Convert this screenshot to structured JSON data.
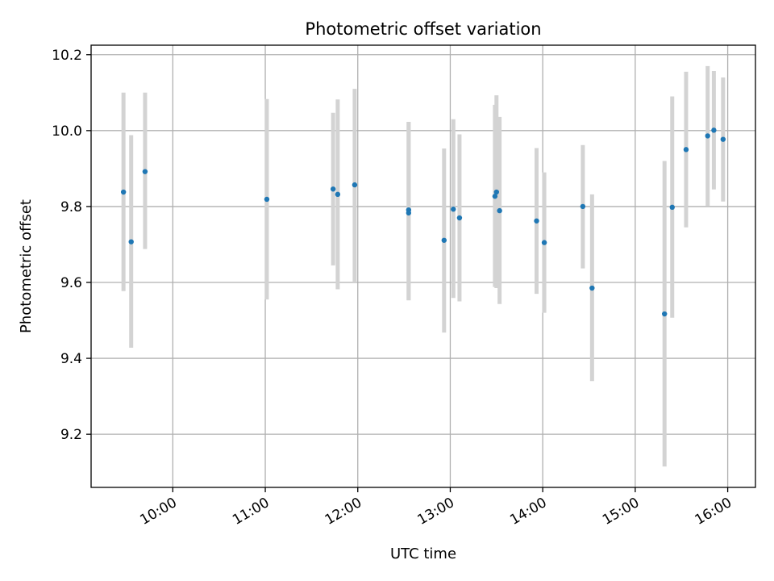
{
  "chart_data": {
    "type": "scatter",
    "title": "Photometric offset variation",
    "xlabel": "UTC time",
    "ylabel": "Photometric offset",
    "xlim": [
      "09:07",
      "16:18"
    ],
    "ylim": [
      9.06,
      10.225
    ],
    "xticks": [
      "10:00",
      "11:00",
      "12:00",
      "13:00",
      "14:00",
      "15:00",
      "16:00"
    ],
    "yticks": [
      9.2,
      9.4,
      9.6,
      9.8,
      10.0,
      10.2
    ],
    "ytick_labels": [
      "9.2",
      "9.4",
      "9.6",
      "9.8",
      "10.0",
      "10.2"
    ],
    "grid": true,
    "colors": {
      "marker": "#1f77b4",
      "errorbar": "#d3d3d3",
      "grid": "#b0b0b0"
    },
    "points": [
      {
        "x": "09:28",
        "y": 9.838,
        "ylo": 9.577,
        "yhi": 10.1
      },
      {
        "x": "09:33",
        "y": 9.707,
        "ylo": 9.428,
        "yhi": 9.988
      },
      {
        "x": "09:42",
        "y": 9.892,
        "ylo": 9.688,
        "yhi": 10.1
      },
      {
        "x": "11:01",
        "y": 9.819,
        "ylo": 9.555,
        "yhi": 10.083
      },
      {
        "x": "11:44",
        "y": 9.846,
        "ylo": 9.645,
        "yhi": 10.047
      },
      {
        "x": "11:47",
        "y": 9.832,
        "ylo": 9.582,
        "yhi": 10.082
      },
      {
        "x": "11:58",
        "y": 9.857,
        "ylo": 9.6,
        "yhi": 10.11
      },
      {
        "x": "12:33",
        "y": 9.791,
        "ylo": 9.553,
        "yhi": 10.023
      },
      {
        "x": "12:33",
        "y": 9.783,
        "ylo": 9.553,
        "yhi": 10.023
      },
      {
        "x": "12:56",
        "y": 9.711,
        "ylo": 9.468,
        "yhi": 9.953
      },
      {
        "x": "13:02",
        "y": 9.793,
        "ylo": 9.559,
        "yhi": 10.03
      },
      {
        "x": "13:06",
        "y": 9.77,
        "ylo": 9.55,
        "yhi": 9.99
      },
      {
        "x": "13:29",
        "y": 9.827,
        "ylo": 9.588,
        "yhi": 10.068
      },
      {
        "x": "13:30",
        "y": 9.838,
        "ylo": 9.585,
        "yhi": 10.093
      },
      {
        "x": "13:32",
        "y": 9.789,
        "ylo": 9.543,
        "yhi": 10.036
      },
      {
        "x": "13:56",
        "y": 9.762,
        "ylo": 9.57,
        "yhi": 9.954
      },
      {
        "x": "14:01",
        "y": 9.705,
        "ylo": 9.52,
        "yhi": 9.89
      },
      {
        "x": "14:26",
        "y": 9.8,
        "ylo": 9.637,
        "yhi": 9.962
      },
      {
        "x": "14:32",
        "y": 9.585,
        "ylo": 9.34,
        "yhi": 9.832
      },
      {
        "x": "15:19",
        "y": 9.517,
        "ylo": 9.115,
        "yhi": 9.92
      },
      {
        "x": "15:24",
        "y": 9.798,
        "ylo": 9.507,
        "yhi": 10.09
      },
      {
        "x": "15:33",
        "y": 9.95,
        "ylo": 9.745,
        "yhi": 10.155
      },
      {
        "x": "15:47",
        "y": 9.986,
        "ylo": 9.802,
        "yhi": 10.17
      },
      {
        "x": "15:51",
        "y": 10.001,
        "ylo": 9.845,
        "yhi": 10.157
      },
      {
        "x": "15:57",
        "y": 9.977,
        "ylo": 9.813,
        "yhi": 10.14
      }
    ]
  }
}
